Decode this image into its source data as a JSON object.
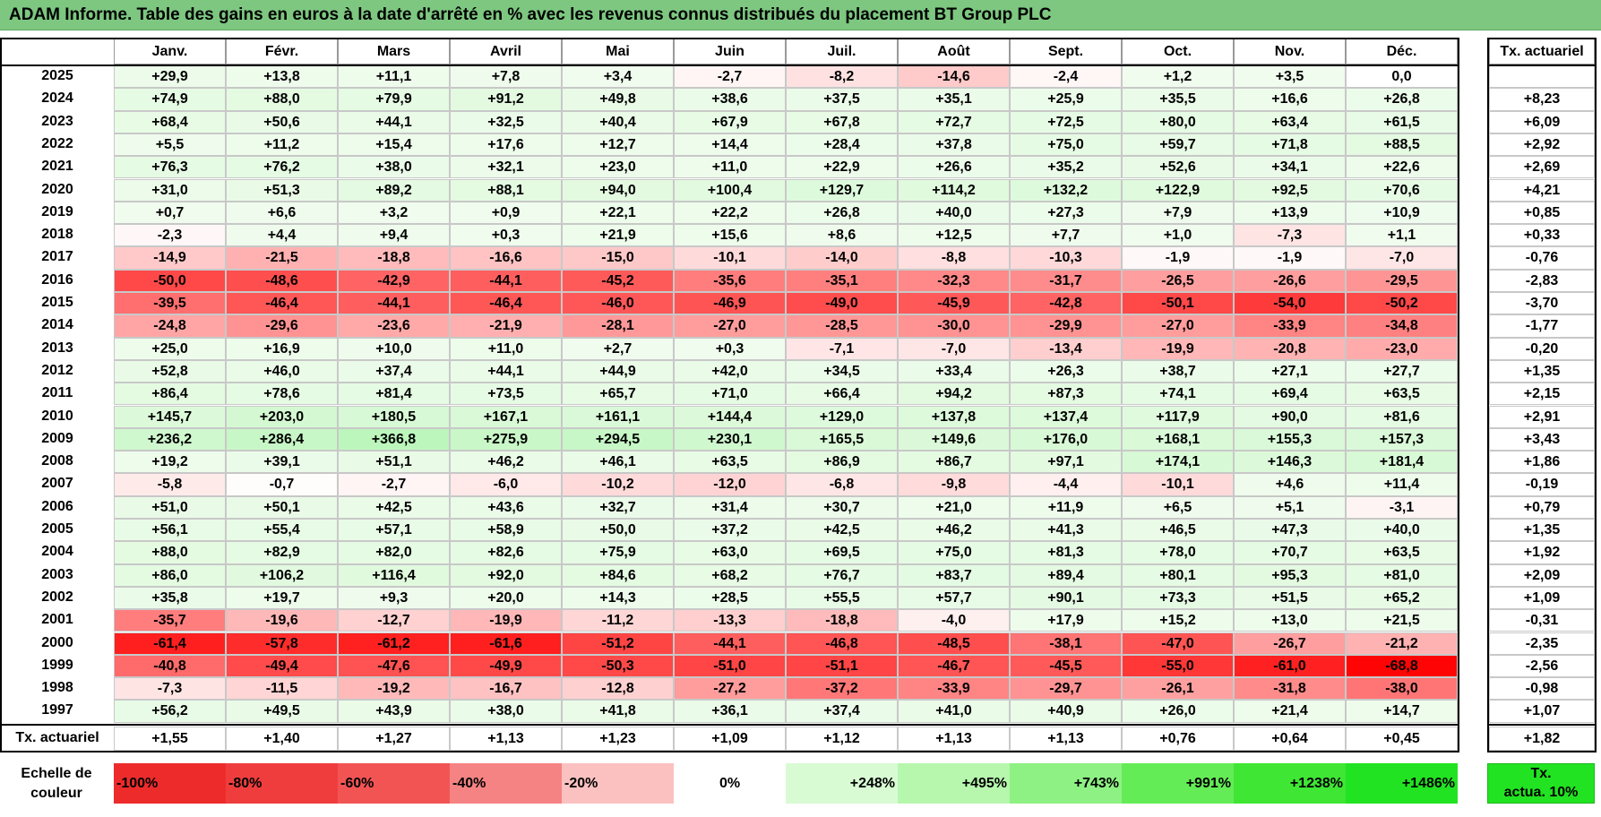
{
  "title": "ADAM Informe. Table des gains en euros à la date d'arrêté en % avec les revenus connus distribués du placement BT Group PLC",
  "months": [
    "Janv.",
    "Févr.",
    "Mars",
    "Avril",
    "Mai",
    "Juin",
    "Juil.",
    "Août",
    "Sept.",
    "Oct.",
    "Nov.",
    "Déc."
  ],
  "rate_header": "Tx. actuariel",
  "rows": [
    {
      "year": "2025",
      "values": [
        "+29,9",
        "+13,8",
        "+11,1",
        "+7,8",
        "+3,4",
        "-2,7",
        "-8,2",
        "-14,6",
        "-2,4",
        "+1,2",
        "+3,5",
        "0,0"
      ],
      "rate": ""
    },
    {
      "year": "2024",
      "values": [
        "+74,9",
        "+88,0",
        "+79,9",
        "+91,2",
        "+49,8",
        "+38,6",
        "+37,5",
        "+35,1",
        "+25,9",
        "+35,5",
        "+16,6",
        "+26,8"
      ],
      "rate": "+8,23"
    },
    {
      "year": "2023",
      "values": [
        "+68,4",
        "+50,6",
        "+44,1",
        "+32,5",
        "+40,4",
        "+67,9",
        "+67,8",
        "+72,7",
        "+72,5",
        "+80,0",
        "+63,4",
        "+61,5"
      ],
      "rate": "+6,09"
    },
    {
      "year": "2022",
      "values": [
        "+5,5",
        "+11,2",
        "+15,4",
        "+17,6",
        "+12,7",
        "+14,4",
        "+28,4",
        "+37,8",
        "+75,0",
        "+59,7",
        "+71,8",
        "+88,5"
      ],
      "rate": "+2,92"
    },
    {
      "year": "2021",
      "values": [
        "+76,3",
        "+76,2",
        "+38,0",
        "+32,1",
        "+23,0",
        "+11,0",
        "+22,9",
        "+26,6",
        "+35,2",
        "+52,6",
        "+34,1",
        "+22,6"
      ],
      "rate": "+2,69"
    },
    {
      "year": "2020",
      "values": [
        "+31,0",
        "+51,3",
        "+89,2",
        "+88,1",
        "+94,0",
        "+100,4",
        "+129,7",
        "+114,2",
        "+132,2",
        "+122,9",
        "+92,5",
        "+70,6"
      ],
      "rate": "+4,21"
    },
    {
      "year": "2019",
      "values": [
        "+0,7",
        "+6,6",
        "+3,2",
        "+0,9",
        "+22,1",
        "+22,2",
        "+26,8",
        "+40,0",
        "+27,3",
        "+7,9",
        "+13,9",
        "+10,9"
      ],
      "rate": "+0,85"
    },
    {
      "year": "2018",
      "values": [
        "-2,3",
        "+4,4",
        "+9,4",
        "+0,3",
        "+21,9",
        "+15,6",
        "+8,6",
        "+12,5",
        "+7,7",
        "+1,0",
        "-7,3",
        "+1,1"
      ],
      "rate": "+0,33"
    },
    {
      "year": "2017",
      "values": [
        "-14,9",
        "-21,5",
        "-18,8",
        "-16,6",
        "-15,0",
        "-10,1",
        "-14,0",
        "-8,8",
        "-10,3",
        "-1,9",
        "-1,9",
        "-7,0"
      ],
      "rate": "-0,76"
    },
    {
      "year": "2016",
      "values": [
        "-50,0",
        "-48,6",
        "-42,9",
        "-44,1",
        "-45,2",
        "-35,6",
        "-35,1",
        "-32,3",
        "-31,7",
        "-26,5",
        "-26,6",
        "-29,5"
      ],
      "rate": "-2,83"
    },
    {
      "year": "2015",
      "values": [
        "-39,5",
        "-46,4",
        "-44,1",
        "-46,4",
        "-46,0",
        "-46,9",
        "-49,0",
        "-45,9",
        "-42,8",
        "-50,1",
        "-54,0",
        "-50,2"
      ],
      "rate": "-3,70"
    },
    {
      "year": "2014",
      "values": [
        "-24,8",
        "-29,6",
        "-23,6",
        "-21,9",
        "-28,1",
        "-27,0",
        "-28,5",
        "-30,0",
        "-29,9",
        "-27,0",
        "-33,9",
        "-34,8"
      ],
      "rate": "-1,77"
    },
    {
      "year": "2013",
      "values": [
        "+25,0",
        "+16,9",
        "+10,0",
        "+11,0",
        "+2,7",
        "+0,3",
        "-7,1",
        "-7,0",
        "-13,4",
        "-19,9",
        "-20,8",
        "-23,0"
      ],
      "rate": "-0,20"
    },
    {
      "year": "2012",
      "values": [
        "+52,8",
        "+46,0",
        "+37,4",
        "+44,1",
        "+44,9",
        "+42,0",
        "+34,5",
        "+33,4",
        "+26,3",
        "+38,7",
        "+27,1",
        "+27,7"
      ],
      "rate": "+1,35"
    },
    {
      "year": "2011",
      "values": [
        "+86,4",
        "+78,6",
        "+81,4",
        "+73,5",
        "+65,7",
        "+71,0",
        "+66,4",
        "+94,2",
        "+87,3",
        "+74,1",
        "+69,4",
        "+63,5"
      ],
      "rate": "+2,15"
    },
    {
      "year": "2010",
      "values": [
        "+145,7",
        "+203,0",
        "+180,5",
        "+167,1",
        "+161,1",
        "+144,4",
        "+129,0",
        "+137,8",
        "+137,4",
        "+117,9",
        "+90,0",
        "+81,6"
      ],
      "rate": "+2,91"
    },
    {
      "year": "2009",
      "values": [
        "+236,2",
        "+286,4",
        "+366,8",
        "+275,9",
        "+294,5",
        "+230,1",
        "+165,5",
        "+149,6",
        "+176,0",
        "+168,1",
        "+155,3",
        "+157,3"
      ],
      "rate": "+3,43"
    },
    {
      "year": "2008",
      "values": [
        "+19,2",
        "+39,1",
        "+51,1",
        "+46,2",
        "+46,1",
        "+63,5",
        "+86,9",
        "+86,7",
        "+97,1",
        "+174,1",
        "+146,3",
        "+181,4"
      ],
      "rate": "+1,86"
    },
    {
      "year": "2007",
      "values": [
        "-5,8",
        "-0,7",
        "-2,7",
        "-6,0",
        "-10,2",
        "-12,0",
        "-6,8",
        "-9,8",
        "-4,4",
        "-10,1",
        "+4,6",
        "+11,4"
      ],
      "rate": "-0,19"
    },
    {
      "year": "2006",
      "values": [
        "+51,0",
        "+50,1",
        "+42,5",
        "+43,6",
        "+32,7",
        "+31,4",
        "+30,7",
        "+21,0",
        "+11,9",
        "+6,5",
        "+5,1",
        "-3,1"
      ],
      "rate": "+0,79"
    },
    {
      "year": "2005",
      "values": [
        "+56,1",
        "+55,4",
        "+57,1",
        "+58,9",
        "+50,0",
        "+37,2",
        "+42,5",
        "+46,2",
        "+41,3",
        "+46,5",
        "+47,3",
        "+40,0"
      ],
      "rate": "+1,35"
    },
    {
      "year": "2004",
      "values": [
        "+88,0",
        "+82,9",
        "+82,0",
        "+82,6",
        "+75,9",
        "+63,0",
        "+69,5",
        "+75,0",
        "+81,3",
        "+78,0",
        "+70,7",
        "+63,5"
      ],
      "rate": "+1,92"
    },
    {
      "year": "2003",
      "values": [
        "+86,0",
        "+106,2",
        "+116,4",
        "+92,0",
        "+84,6",
        "+68,2",
        "+76,7",
        "+83,7",
        "+89,4",
        "+80,1",
        "+95,3",
        "+81,0"
      ],
      "rate": "+2,09"
    },
    {
      "year": "2002",
      "values": [
        "+35,8",
        "+19,7",
        "+9,3",
        "+20,0",
        "+14,3",
        "+28,5",
        "+55,5",
        "+57,7",
        "+90,1",
        "+73,3",
        "+51,5",
        "+65,2"
      ],
      "rate": "+1,09"
    },
    {
      "year": "2001",
      "values": [
        "-35,7",
        "-19,6",
        "-12,7",
        "-19,9",
        "-11,2",
        "-13,3",
        "-18,8",
        "-4,0",
        "+17,9",
        "+15,2",
        "+13,0",
        "+21,5"
      ],
      "rate": "-0,31"
    },
    {
      "year": "2000",
      "values": [
        "-61,4",
        "-57,8",
        "-61,2",
        "-61,6",
        "-51,2",
        "-44,1",
        "-46,8",
        "-48,5",
        "-38,1",
        "-47,0",
        "-26,7",
        "-21,2"
      ],
      "rate": "-2,35"
    },
    {
      "year": "1999",
      "values": [
        "-40,8",
        "-49,4",
        "-47,6",
        "-49,9",
        "-50,3",
        "-51,0",
        "-51,1",
        "-46,7",
        "-45,5",
        "-55,0",
        "-61,0",
        "-68,8"
      ],
      "rate": "-2,56"
    },
    {
      "year": "1998",
      "values": [
        "-7,3",
        "-11,5",
        "-19,2",
        "-16,7",
        "-12,8",
        "-27,2",
        "-37,2",
        "-33,9",
        "-29,7",
        "-26,1",
        "-31,8",
        "-38,0"
      ],
      "rate": "-0,98"
    },
    {
      "year": "1997",
      "values": [
        "+56,2",
        "+49,5",
        "+43,9",
        "+38,0",
        "+41,8",
        "+36,1",
        "+37,4",
        "+41,0",
        "+40,9",
        "+26,0",
        "+21,4",
        "+14,7"
      ],
      "rate": "+1,07"
    }
  ],
  "footer": {
    "label": "Tx. actuariel",
    "values": [
      "+1,55",
      "+1,40",
      "+1,27",
      "+1,13",
      "+1,23",
      "+1,09",
      "+1,12",
      "+1,13",
      "+1,13",
      "+0,76",
      "+0,64",
      "+0,45"
    ],
    "overall": "+1,82"
  },
  "scale": {
    "label_line1": "Echelle de",
    "label_line2": "couleur",
    "steps": [
      {
        "text": "-100%",
        "color": "#ed2b2b",
        "align": "left"
      },
      {
        "text": "-80%",
        "color": "#ef3d3d",
        "align": "left"
      },
      {
        "text": "-60%",
        "color": "#f25454",
        "align": "left"
      },
      {
        "text": "-40%",
        "color": "#f68383",
        "align": "left"
      },
      {
        "text": "-20%",
        "color": "#fbc1c1",
        "align": "left"
      },
      {
        "text": "0%",
        "color": "#ffffff",
        "align": "center"
      },
      {
        "text": "+248%",
        "color": "#d8fbd4",
        "align": "right"
      },
      {
        "text": "+495%",
        "color": "#b6f7ad",
        "align": "right"
      },
      {
        "text": "+743%",
        "color": "#8ef184",
        "align": "right"
      },
      {
        "text": "+991%",
        "color": "#64ec56",
        "align": "right"
      },
      {
        "text": "+1238%",
        "color": "#3fe634",
        "align": "right"
      },
      {
        "text": "+1486%",
        "color": "#22e322",
        "align": "right"
      }
    ],
    "tx_line1": "Tx.",
    "tx_line2": "actua. 10%",
    "tx_color": "#22e322"
  },
  "colors": {
    "title_bar": "#7dc780",
    "negative_max": "#ff0000",
    "positive_max": "#22e322"
  }
}
